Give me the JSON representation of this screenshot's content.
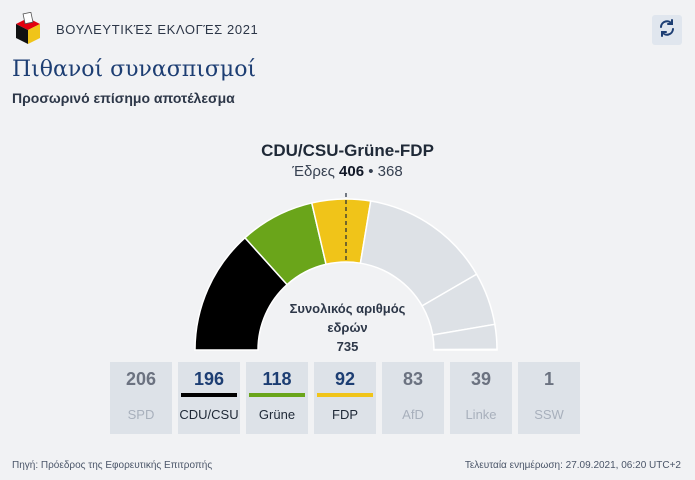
{
  "header": {
    "title": "ΒΟΥΛΕΥΤΙΚΈΣ ΕΚΛΟΓΈΣ 2021",
    "logo_icon": "ballot-box-icon",
    "refresh_icon": "refresh-icon"
  },
  "page": {
    "title": "Πιθανοί συνασπισμοί",
    "subtitle": "Προσωρινό επίσημο αποτέλεσμα"
  },
  "coalition": {
    "name": "CDU/CSU-Grüne-FDP",
    "seats_label": "Έδρες",
    "seats": "406",
    "separator": "•",
    "majority": "368"
  },
  "total": {
    "label": "Συνολικός αριθμός εδρών",
    "value": "735"
  },
  "parties": [
    {
      "seats": "206",
      "name": "SPD",
      "color": "#e3000f",
      "in_coalition": false
    },
    {
      "seats": "196",
      "name": "CDU/CSU",
      "color": "#000000",
      "in_coalition": true
    },
    {
      "seats": "118",
      "name": "Grüne",
      "color": "#6aa51a",
      "in_coalition": true
    },
    {
      "seats": "92",
      "name": "FDP",
      "color": "#f0c419",
      "in_coalition": true
    },
    {
      "seats": "83",
      "name": "AfD",
      "color": "#009ee0",
      "in_coalition": false
    },
    {
      "seats": "39",
      "name": "Linke",
      "color": "#be3075",
      "in_coalition": false
    },
    {
      "seats": "1",
      "name": "SSW",
      "color": "#003c8f",
      "in_coalition": false
    }
  ],
  "colors": {
    "inactive_segment": "#dde1e6",
    "accent": "#1d3e73"
  },
  "footer": {
    "source": "Πηγή: Πρόεδρος της Εφορευτικής Επιτροπής",
    "updated": "Τελευταία ενημέρωση: 27.09.2021, 06:20 UTC+2"
  }
}
